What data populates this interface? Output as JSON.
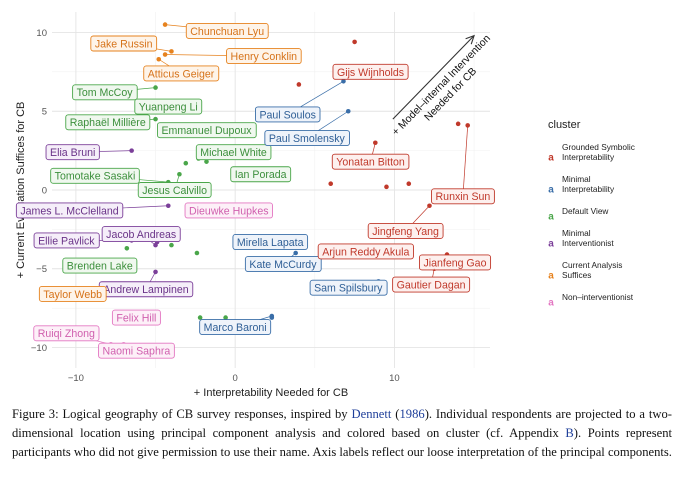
{
  "chart_data": {
    "type": "scatter",
    "xlabel": "+ Interpretability Needed for CB",
    "ylabel": "+ Current Evaluation Suffices for CB",
    "xlim": [
      -11.5,
      16
    ],
    "ylim": [
      -11.3,
      11.3
    ],
    "xticks": [
      -10,
      0,
      10
    ],
    "yticks": [
      -10,
      -5,
      0,
      5,
      10
    ],
    "grid": true,
    "arrow_annotation": "+ Model–internal Intervention Needed for CB",
    "legend": {
      "title": "cluster",
      "placement": "right",
      "entries": [
        {
          "label": "Grounded Symbolic Interpretability",
          "color": "#c0392b"
        },
        {
          "label": "Minimal Interpretability",
          "color": "#3a6ea8"
        },
        {
          "label": "Default View",
          "color": "#4aa64a"
        },
        {
          "label": "Minimal Interventionist",
          "color": "#7b3f99"
        },
        {
          "label": "Current Analysis Suffices",
          "color": "#e6821e"
        },
        {
          "label": "Non–interventionist",
          "color": "#e377c2"
        }
      ]
    },
    "labeled_points": [
      {
        "name": "Chunchuan Lyu",
        "cluster": 4,
        "x": -4.4,
        "y": 10.5,
        "lx": -0.5,
        "ly": 10.1
      },
      {
        "name": "Jake Russin",
        "cluster": 4,
        "x": -4.0,
        "y": 8.8,
        "lx": -7.0,
        "ly": 9.3
      },
      {
        "name": "Henry Conklin",
        "cluster": 4,
        "x": -4.4,
        "y": 8.6,
        "lx": 1.8,
        "ly": 8.5
      },
      {
        "name": "Atticus Geiger",
        "cluster": 4,
        "x": -4.8,
        "y": 8.3,
        "lx": -3.4,
        "ly": 7.4
      },
      {
        "name": "Tom McCoy",
        "cluster": 2,
        "x": -5.0,
        "y": 6.5,
        "lx": -8.2,
        "ly": 6.2
      },
      {
        "name": "Yuanpeng Li",
        "cluster": 2,
        "x": -4.6,
        "y": 5.5,
        "lx": -4.2,
        "ly": 5.3
      },
      {
        "name": "Raphaël Millière",
        "cluster": 2,
        "x": -5.0,
        "y": 4.5,
        "lx": -8.0,
        "ly": 4.3
      },
      {
        "name": "Emmanuel Dupoux",
        "cluster": 2,
        "x": -4.3,
        "y": 3.8,
        "lx": -1.8,
        "ly": 3.8
      },
      {
        "name": "Elia Bruni",
        "cluster": 3,
        "x": -6.5,
        "y": 2.5,
        "lx": -10.2,
        "ly": 2.4
      },
      {
        "name": "Michael White",
        "cluster": 2,
        "x": -1.8,
        "y": 2.3,
        "lx": -0.1,
        "ly": 2.4
      },
      {
        "name": "Tomotake Sasaki",
        "cluster": 2,
        "x": -4.2,
        "y": 0.5,
        "lx": -8.8,
        "ly": 0.9
      },
      {
        "name": "Ian Porada",
        "cluster": 2,
        "x": 0.8,
        "y": 0.8,
        "lx": 1.6,
        "ly": 1.0
      },
      {
        "name": "Jesus Calvillo",
        "cluster": 2,
        "x": -3.5,
        "y": 1.0,
        "lx": -3.8,
        "ly": 0.0
      },
      {
        "name": "James L. McClelland",
        "cluster": 3,
        "x": -4.2,
        "y": -1.0,
        "lx": -10.4,
        "ly": -1.3
      },
      {
        "name": "Dieuwke Hupkes",
        "cluster": 5,
        "x": -0.5,
        "y": -1.5,
        "lx": -0.4,
        "ly": -1.3
      },
      {
        "name": "Ellie Pavlick",
        "cluster": 3,
        "x": -6.5,
        "y": -3.2,
        "lx": -10.6,
        "ly": -3.2
      },
      {
        "name": "Jacob Andreas",
        "cluster": 3,
        "x": -5.0,
        "y": -3.5,
        "lx": -5.9,
        "ly": -2.8
      },
      {
        "name": "Mirella Lapata",
        "cluster": 1,
        "x": 2.0,
        "y": -3.5,
        "lx": 2.2,
        "ly": -3.3
      },
      {
        "name": "Brenden Lake",
        "cluster": 2,
        "x": -6.5,
        "y": -4.5,
        "lx": -8.5,
        "ly": -4.8
      },
      {
        "name": "Kate McCurdy",
        "cluster": 1,
        "x": 3.8,
        "y": -4.0,
        "lx": 3.0,
        "ly": -4.7
      },
      {
        "name": "Andrew Lampinen",
        "cluster": 3,
        "x": -5.0,
        "y": -5.2,
        "lx": -5.6,
        "ly": -6.3
      },
      {
        "name": "Taylor Webb",
        "cluster": 4,
        "x": -9.5,
        "y": -6.3,
        "lx": -10.2,
        "ly": -6.6
      },
      {
        "name": "Felix Hill",
        "cluster": 5,
        "x": -6.0,
        "y": -8.0,
        "lx": -6.2,
        "ly": -8.1
      },
      {
        "name": "Marco Baroni",
        "cluster": 1,
        "x": 2.3,
        "y": -8.0,
        "lx": 0.0,
        "ly": -8.7
      },
      {
        "name": "Ruiqi Zhong",
        "cluster": 5,
        "x": -7.8,
        "y": -9.8,
        "lx": -10.6,
        "ly": -9.1
      },
      {
        "name": "Naomi Saphra",
        "cluster": 5,
        "x": -7.0,
        "y": -9.8,
        "lx": -6.2,
        "ly": -10.2
      },
      {
        "name": "Gijs Wijnholds",
        "cluster": 0,
        "x": 8.1,
        "y": 7.6,
        "lx": 8.5,
        "ly": 7.5
      },
      {
        "name": "Paul Soulos",
        "cluster": 1,
        "x": 6.8,
        "y": 6.9,
        "lx": 3.3,
        "ly": 4.8
      },
      {
        "name": "Paul Smolensky",
        "cluster": 1,
        "x": 7.1,
        "y": 5.0,
        "lx": 4.5,
        "ly": 3.3
      },
      {
        "name": "Yonatan Bitton",
        "cluster": 0,
        "x": 8.8,
        "y": 3.0,
        "lx": 8.5,
        "ly": 1.8
      },
      {
        "name": "Runxin Sun",
        "cluster": 0,
        "x": 14.6,
        "y": 4.1,
        "lx": 14.3,
        "ly": -0.4
      },
      {
        "name": "Jingfeng Yang",
        "cluster": 0,
        "x": 12.2,
        "y": -1.0,
        "lx": 10.7,
        "ly": -2.6
      },
      {
        "name": "Arjun Reddy Akula",
        "cluster": 0,
        "x": 9.8,
        "y": -3.8,
        "lx": 8.2,
        "ly": -3.9
      },
      {
        "name": "Jianfeng Gao",
        "cluster": 0,
        "x": 13.3,
        "y": -4.1,
        "lx": 13.8,
        "ly": -4.6
      },
      {
        "name": "Sam Spilsbury",
        "cluster": 1,
        "x": 9.0,
        "y": -5.8,
        "lx": 7.1,
        "ly": -6.2
      },
      {
        "name": "Gautier Dagan",
        "cluster": 0,
        "x": 12.5,
        "y": -5.0,
        "lx": 12.3,
        "ly": -6.0
      }
    ],
    "unlabeled_points": [
      {
        "cluster": 0,
        "x": 7.5,
        "y": 9.4
      },
      {
        "cluster": 0,
        "x": 4.0,
        "y": 6.7
      },
      {
        "cluster": 0,
        "x": 6.0,
        "y": 0.4
      },
      {
        "cluster": 0,
        "x": 9.5,
        "y": 0.2
      },
      {
        "cluster": 0,
        "x": 10.9,
        "y": 0.4
      },
      {
        "cluster": 0,
        "x": 14.0,
        "y": 4.2
      },
      {
        "cluster": 1,
        "x": 2.3,
        "y": -8.1
      },
      {
        "cluster": 2,
        "x": -3.1,
        "y": 1.7
      },
      {
        "cluster": 2,
        "x": -2.3,
        "y": 2.0
      },
      {
        "cluster": 2,
        "x": -1.8,
        "y": 1.8
      },
      {
        "cluster": 2,
        "x": -6.8,
        "y": -3.7
      },
      {
        "cluster": 2,
        "x": -4.0,
        "y": -3.5
      },
      {
        "cluster": 2,
        "x": -2.4,
        "y": -4.0
      },
      {
        "cluster": 2,
        "x": 0.0,
        "y": -3.2
      },
      {
        "cluster": 2,
        "x": 1.8,
        "y": -5.0
      },
      {
        "cluster": 2,
        "x": -2.2,
        "y": -8.1
      },
      {
        "cluster": 2,
        "x": -0.6,
        "y": -8.1
      },
      {
        "cluster": 2,
        "x": 1.8,
        "y": -4.5
      },
      {
        "cluster": 3,
        "x": -4.9,
        "y": -3.3
      },
      {
        "cluster": 5,
        "x": -6.2,
        "y": -8.1
      },
      {
        "cluster": 5,
        "x": -8.0,
        "y": -10.0
      }
    ]
  },
  "caption": {
    "lead": "Figure 3: Logical geography of CB survey responses, inspired by ",
    "cite_author": "Dennett",
    "paren_open": " (",
    "cite_year": "1986",
    "after_cite": "). Individual respondents are projected to a two-dimensional location using principal component analysis and colored based on cluster (cf. Appendix ",
    "appendix_ref": "B",
    "tail": "). Points represent participants who did not give permission to use their name. Axis labels reflect our loose interpretation of the principal components."
  }
}
